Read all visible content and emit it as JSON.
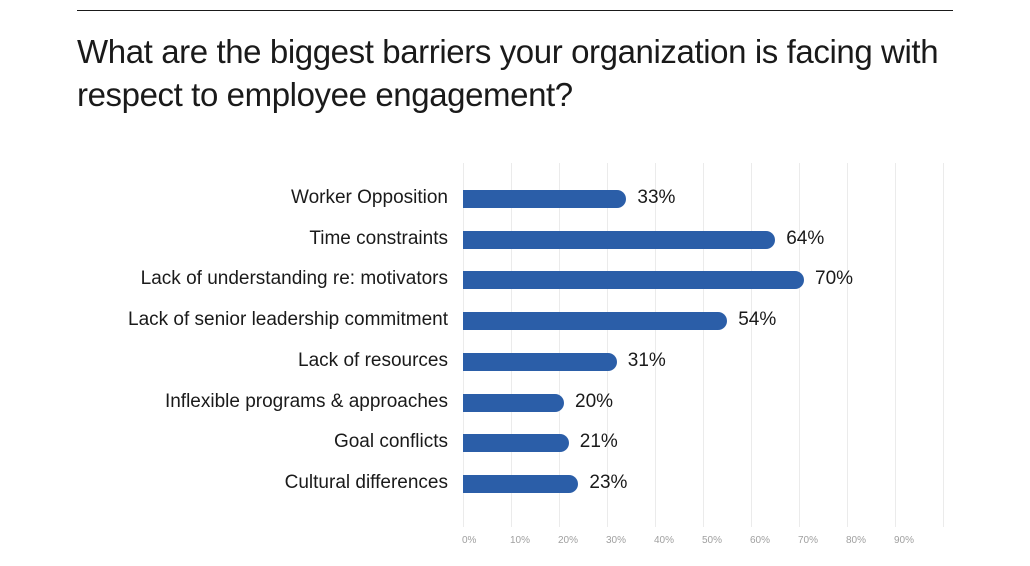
{
  "title": "What are the biggest barriers your organization is facing with respect to employee engagement?",
  "colors": {
    "bar": "#2b5ea8",
    "grid": "#ebebeb",
    "tick": "#a0a0a0",
    "text": "#1a1a1a"
  },
  "chart_data": {
    "type": "bar",
    "orientation": "horizontal",
    "title": "What are the biggest barriers your organization is facing with respect to employee engagement?",
    "xlabel": "",
    "ylabel": "",
    "categories": [
      "Worker Opposition",
      "Time constraints",
      "Lack of understanding re: motivators",
      "Lack of senior leadership commitment",
      "Lack of resources",
      "Inflexible programs & approaches",
      "Goal conflicts",
      "Cultural differences"
    ],
    "values": [
      33,
      64,
      70,
      54,
      31,
      20,
      21,
      23
    ],
    "value_labels": [
      "33%",
      "64%",
      "70%",
      "54%",
      "31%",
      "20%",
      "21%",
      "23%"
    ],
    "xlim": [
      0,
      100
    ],
    "x_ticks": [
      "0%",
      "10%",
      "20%",
      "30%",
      "40%",
      "50%",
      "60%",
      "70%",
      "80%",
      "90%"
    ],
    "grid": true,
    "legend": null
  }
}
